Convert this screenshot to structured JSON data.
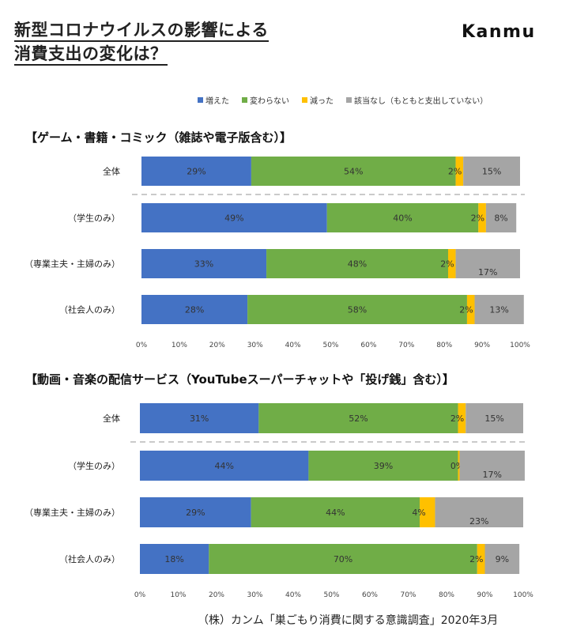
{
  "header": {
    "title_line1": "新型コロナウイルスの影響による",
    "title_line2": "消費支出の変化は？",
    "brand": "Kanmu"
  },
  "colors": {
    "increased": "#4472C4",
    "unchanged": "#70AD47",
    "decreased": "#FFC000",
    "not_applicable": "#A5A5A5"
  },
  "legend": [
    "増えた",
    "変わらない",
    "減った",
    "該当なし（もともと支出していない）"
  ],
  "source": "（株）カンム「巣ごもり消費に関する意識調査」2020年3月",
  "chart_data": [
    {
      "type": "bar",
      "stacked": true,
      "orientation": "horizontal",
      "title": "【ゲーム・書籍・コミック（雑誌や電子版含む）】",
      "categories": [
        "全体",
        "（学生のみ）",
        "（専業主夫・主婦のみ）",
        "（社会人のみ）"
      ],
      "series": [
        {
          "name": "増えた",
          "values": [
            29,
            49,
            33,
            28
          ],
          "labels": [
            "29%",
            "49%",
            "33%",
            "28%"
          ]
        },
        {
          "name": "変わらない",
          "values": [
            54,
            40,
            48,
            58
          ],
          "labels": [
            "54%",
            "40%",
            "48%",
            "58%"
          ]
        },
        {
          "name": "減った",
          "values": [
            2,
            2,
            2,
            2
          ],
          "labels": [
            "2%",
            "2%",
            "2%",
            "2%"
          ]
        },
        {
          "name": "該当なし（もともと支出していない）",
          "values": [
            15,
            8,
            17,
            13
          ],
          "labels": [
            "15%",
            "8%",
            "17%",
            "13%"
          ]
        }
      ],
      "xlim": [
        0,
        100
      ],
      "xticks": [
        "0%",
        "10%",
        "20%",
        "30%",
        "40%",
        "50%",
        "60%",
        "70%",
        "80%",
        "90%",
        "100%"
      ]
    },
    {
      "type": "bar",
      "stacked": true,
      "orientation": "horizontal",
      "title": "【動画・音楽の配信サービス（YouTubeスーパーチャットや「投げ銭」含む）】",
      "categories": [
        "全体",
        "（学生のみ）",
        "（専業主夫・主婦のみ）",
        "（社会人のみ）"
      ],
      "series": [
        {
          "name": "増えた",
          "values": [
            31,
            44,
            29,
            18
          ],
          "labels": [
            "31%",
            "44%",
            "29%",
            "18%"
          ]
        },
        {
          "name": "変わらない",
          "values": [
            52,
            39,
            44,
            70
          ],
          "labels": [
            "52%",
            "39%",
            "44%",
            "70%"
          ]
        },
        {
          "name": "減った",
          "values": [
            2,
            0.4,
            4,
            2
          ],
          "labels": [
            "2%",
            "0%",
            "4%",
            "2%"
          ]
        },
        {
          "name": "該当なし（もともと支出していない）",
          "values": [
            15,
            17,
            23,
            9
          ],
          "labels": [
            "15%",
            "17%",
            "23%",
            "9%"
          ]
        }
      ],
      "xlim": [
        0,
        100
      ],
      "xticks": [
        "0%",
        "10%",
        "20%",
        "30%",
        "40%",
        "50%",
        "60%",
        "70%",
        "80%",
        "90%",
        "100%"
      ]
    }
  ]
}
